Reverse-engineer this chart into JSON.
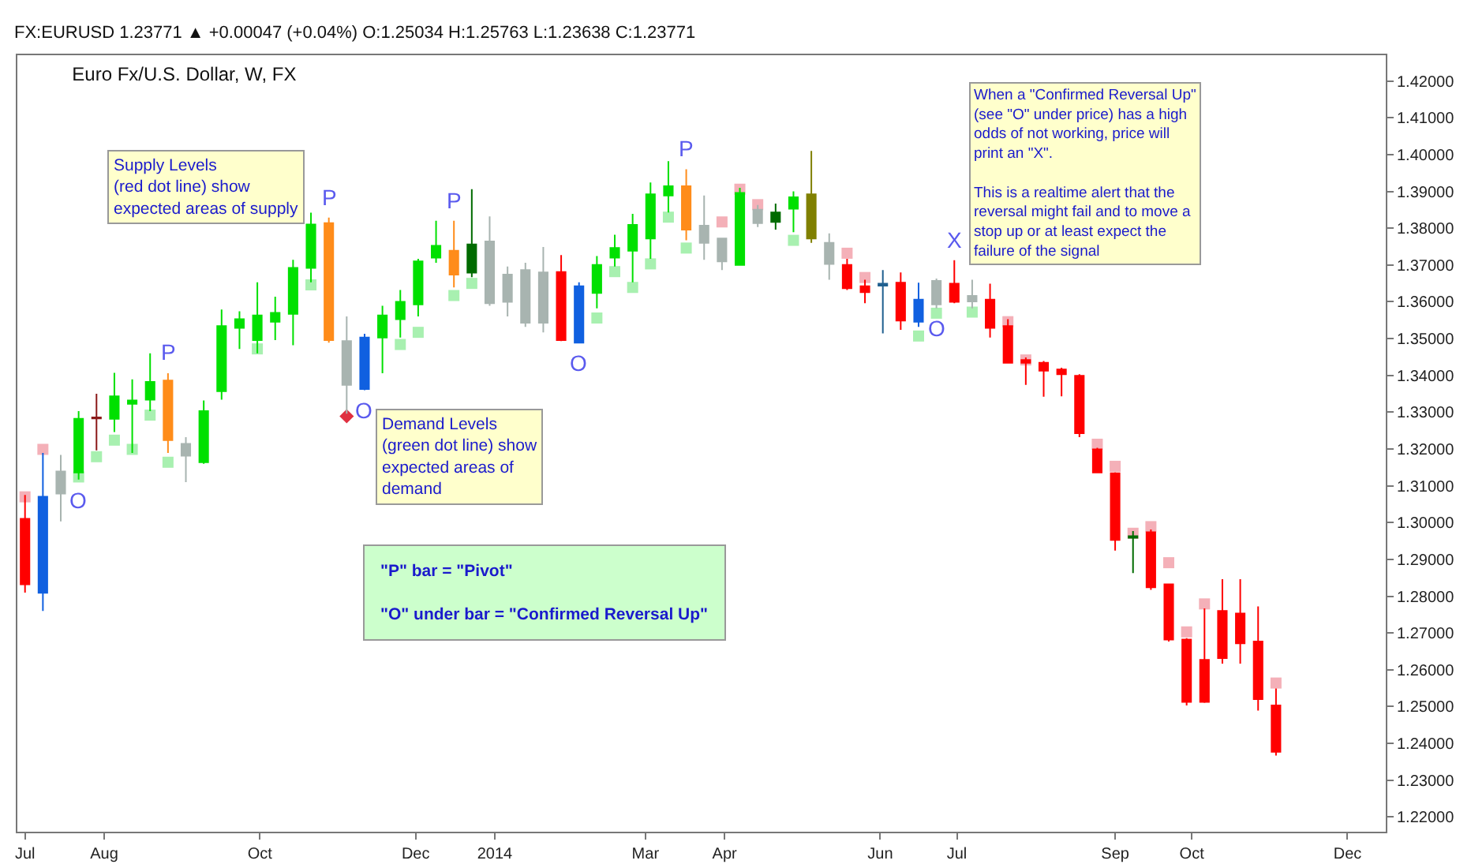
{
  "chart_data": {
    "type": "candlestick",
    "title": "Euro Fx/U.S. Dollar, W, FX",
    "x": [
      "2013-07-01",
      "2013-07-08",
      "2013-07-15",
      "2013-07-22",
      "2013-07-29",
      "2013-08-05",
      "2013-08-12",
      "2013-08-19",
      "2013-08-26",
      "2013-09-02",
      "2013-09-09",
      "2013-09-16",
      "2013-09-23",
      "2013-09-30",
      "2013-10-07",
      "2013-10-14",
      "2013-10-21",
      "2013-10-28",
      "2013-11-04",
      "2013-11-11",
      "2013-11-18",
      "2013-11-25",
      "2013-12-02",
      "2013-12-09",
      "2013-12-16",
      "2013-12-23",
      "2013-12-30",
      "2014-01-06",
      "2014-01-13",
      "2014-01-20",
      "2014-01-27",
      "2014-02-03",
      "2014-02-10",
      "2014-02-17",
      "2014-02-24",
      "2014-03-03",
      "2014-03-10",
      "2014-03-17",
      "2014-03-24",
      "2014-03-31",
      "2014-04-07",
      "2014-04-14",
      "2014-04-21",
      "2014-04-28",
      "2014-05-05",
      "2014-05-12",
      "2014-05-19",
      "2014-05-26",
      "2014-06-02",
      "2014-06-09",
      "2014-06-16",
      "2014-06-23",
      "2014-06-30",
      "2014-07-07",
      "2014-07-14",
      "2014-07-21",
      "2014-07-28",
      "2014-08-04",
      "2014-08-11",
      "2014-08-18",
      "2014-08-25",
      "2014-09-01",
      "2014-09-08",
      "2014-09-15",
      "2014-09-22",
      "2014-09-29",
      "2014-10-06",
      "2014-10-13",
      "2014-10-20",
      "2014-10-27",
      "2014-11-03"
    ],
    "ohlc": [
      [
        1.301,
        1.3075,
        1.281,
        1.2832
      ],
      [
        1.2809,
        1.3189,
        1.276,
        1.307
      ],
      [
        1.3079,
        1.3184,
        1.3003,
        1.3139
      ],
      [
        1.3136,
        1.3303,
        1.3117,
        1.3282
      ],
      [
        1.3286,
        1.335,
        1.3196,
        1.3283
      ],
      [
        1.3282,
        1.3407,
        1.3246,
        1.3343
      ],
      [
        1.3323,
        1.3389,
        1.3189,
        1.3332
      ],
      [
        1.3334,
        1.346,
        1.3303,
        1.3382
      ],
      [
        1.3386,
        1.3406,
        1.3189,
        1.3224
      ],
      [
        1.3182,
        1.3232,
        1.311,
        1.3214
      ],
      [
        1.3164,
        1.3332,
        1.316,
        1.3303
      ],
      [
        1.3357,
        1.3579,
        1.3334,
        1.3534
      ],
      [
        1.3529,
        1.3574,
        1.3472,
        1.3553
      ],
      [
        1.3496,
        1.3653,
        1.346,
        1.3563
      ],
      [
        1.3546,
        1.3614,
        1.3496,
        1.357
      ],
      [
        1.3567,
        1.3714,
        1.3482,
        1.3692
      ],
      [
        1.3692,
        1.3842,
        1.3653,
        1.381
      ],
      [
        1.3814,
        1.3829,
        1.3489,
        1.3496
      ],
      [
        1.3493,
        1.356,
        1.3296,
        1.3374
      ],
      [
        1.3363,
        1.3513,
        1.336,
        1.3503
      ],
      [
        1.3503,
        1.3589,
        1.3406,
        1.3563
      ],
      [
        1.3553,
        1.3632,
        1.3503,
        1.36
      ],
      [
        1.3593,
        1.3717,
        1.356,
        1.371
      ],
      [
        1.372,
        1.382,
        1.3706,
        1.3752
      ],
      [
        1.3739,
        1.382,
        1.3639,
        1.3674
      ],
      [
        1.3679,
        1.3906,
        1.3667,
        1.3756
      ],
      [
        1.3764,
        1.3832,
        1.3589,
        1.3596
      ],
      [
        1.36,
        1.3696,
        1.356,
        1.3674
      ],
      [
        1.3686,
        1.3706,
        1.3532,
        1.3543
      ],
      [
        1.3543,
        1.3749,
        1.3517,
        1.368
      ],
      [
        1.3681,
        1.3727,
        1.3493,
        1.3496
      ],
      [
        1.3489,
        1.3653,
        1.3489,
        1.3642
      ],
      [
        1.3624,
        1.3724,
        1.3582,
        1.37
      ],
      [
        1.372,
        1.3782,
        1.3696,
        1.3746
      ],
      [
        1.3739,
        1.3839,
        1.3653,
        1.3809
      ],
      [
        1.3772,
        1.3924,
        1.3717,
        1.3892
      ],
      [
        1.3889,
        1.3982,
        1.3843,
        1.3914
      ],
      [
        1.3914,
        1.396,
        1.3767,
        1.3796
      ],
      [
        1.3807,
        1.3889,
        1.3714,
        1.376
      ],
      [
        1.3772,
        1.3774,
        1.3686,
        1.371
      ],
      [
        1.37,
        1.391,
        1.37,
        1.3896
      ],
      [
        1.385,
        1.3863,
        1.3803,
        1.3814
      ],
      [
        1.3817,
        1.3867,
        1.3796,
        1.3843
      ],
      [
        1.3853,
        1.39,
        1.3789,
        1.3884
      ],
      [
        1.3892,
        1.401,
        1.376,
        1.3772
      ],
      [
        1.376,
        1.3786,
        1.366,
        1.3703
      ],
      [
        1.37,
        1.3717,
        1.3632,
        1.3637
      ],
      [
        1.3642,
        1.366,
        1.3596,
        1.3626
      ],
      [
        1.3649,
        1.3686,
        1.3514,
        1.3644
      ],
      [
        1.3652,
        1.368,
        1.3524,
        1.3549
      ],
      [
        1.3546,
        1.3652,
        1.3532,
        1.3606
      ],
      [
        1.3593,
        1.3663,
        1.3582,
        1.3657
      ],
      [
        1.3649,
        1.3713,
        1.3596,
        1.36
      ],
      [
        1.3601,
        1.366,
        1.3582,
        1.3616
      ],
      [
        1.3606,
        1.3649,
        1.3503,
        1.3529
      ],
      [
        1.3534,
        1.3553,
        1.3432,
        1.3434
      ],
      [
        1.3442,
        1.3449,
        1.3374,
        1.3434
      ],
      [
        1.3434,
        1.3439,
        1.3342,
        1.3413
      ],
      [
        1.3416,
        1.3421,
        1.3343,
        1.3403
      ],
      [
        1.3399,
        1.3403,
        1.3232,
        1.3243
      ],
      [
        1.3199,
        1.3203,
        1.3134,
        1.3136
      ],
      [
        1.3134,
        1.3137,
        1.2924,
        1.2953
      ],
      [
        1.2959,
        1.2977,
        1.2863,
        1.2963
      ],
      [
        1.2974,
        1.2981,
        1.2817,
        1.2824
      ],
      [
        1.2832,
        1.2834,
        1.2677,
        1.2682
      ],
      [
        1.2682,
        1.2686,
        1.2503,
        1.2513
      ],
      [
        1.2627,
        1.2767,
        1.251,
        1.2513
      ],
      [
        1.276,
        1.2846,
        1.2617,
        1.2632
      ],
      [
        1.2753,
        1.2846,
        1.2617,
        1.2672
      ],
      [
        1.2677,
        1.2772,
        1.2489,
        1.252
      ],
      [
        1.2503,
        1.2549,
        1.2367,
        1.2377
      ]
    ],
    "colors": [
      "#ff0000",
      "#1060e0",
      "#a8b4b0",
      "#00e000",
      "#8b1a1a",
      "#00e000",
      "#00e000",
      "#00e000",
      "#ff8c1a",
      "#a8b4b0",
      "#00e000",
      "#00e000",
      "#00e000",
      "#00e000",
      "#00e000",
      "#00e000",
      "#00e000",
      "#ff8c1a",
      "#a8b4b0",
      "#1060e0",
      "#00e000",
      "#00e000",
      "#00e000",
      "#00e000",
      "#ff8c1a",
      "#006b00",
      "#a8b4b0",
      "#a8b4b0",
      "#a8b4b0",
      "#a8b4b0",
      "#ff0000",
      "#1060e0",
      "#00e000",
      "#00e000",
      "#00e000",
      "#00e000",
      "#00e000",
      "#ff8c1a",
      "#a8b4b0",
      "#a8b4b0",
      "#00e000",
      "#a8b4b0",
      "#006b00",
      "#00e000",
      "#808000",
      "#a8b4b0",
      "#ff0000",
      "#ff0000",
      "#1f5f8f",
      "#ff0000",
      "#1060e0",
      "#a8b4b0",
      "#ff0000",
      "#a8b4b0",
      "#ff0000",
      "#ff0000",
      "#ff0000",
      "#ff0000",
      "#ff0000",
      "#ff0000",
      "#ff0000",
      "#ff0000",
      "#006b00",
      "#ff0000",
      "#ff0000",
      "#ff0000",
      "#ff0000",
      "#ff0000",
      "#ff0000",
      "#ff0000",
      "#ff0000"
    ],
    "series": [
      {
        "type": "scatter",
        "marker": "square",
        "color": "#f4b0b8",
        "x": [
          "2013-07-01",
          "2013-07-08",
          "2014-03-31",
          "2014-04-07",
          "2014-04-14",
          "2014-05-19",
          "2014-05-26",
          "2014-07-21",
          "2014-07-28",
          "2014-08-11",
          "2014-08-25",
          "2014-09-01",
          "2014-09-08",
          "2014-09-15",
          "2014-09-22",
          "2014-09-29",
          "2014-10-06",
          "2014-11-03"
        ],
        "values": [
          1.307,
          1.3199,
          1.3817,
          1.3906,
          1.3864,
          1.3732,
          1.3666,
          1.3546,
          1.3442,
          null,
          1.3213,
          1.3153,
          1.2971,
          1.2989,
          1.2891,
          1.2703,
          1.2779,
          1.2564
        ]
      },
      {
        "type": "scatter",
        "marker": "square",
        "color": "#a8f0b0",
        "x": [
          "2013-07-22",
          "2013-07-29",
          "2013-08-05",
          "2013-08-12",
          "2013-08-19",
          "2013-08-26",
          "2013-09-30",
          "2013-10-21",
          "2013-11-25",
          "2013-12-02",
          "2013-12-16",
          "2013-12-23",
          "2014-02-10",
          "2014-02-17",
          "2014-02-24",
          "2014-03-03",
          "2014-03-10",
          "2014-03-17",
          "2014-04-28",
          "2014-06-16",
          "2014-06-23",
          "2014-07-07"
        ],
        "values": [
          1.3124,
          1.3179,
          1.3224,
          1.3199,
          1.3292,
          1.3164,
          1.3472,
          1.3646,
          1.3484,
          1.3517,
          1.3617,
          1.365,
          1.3556,
          1.3682,
          1.3639,
          1.3703,
          1.383,
          1.3746,
          1.3767,
          1.3507,
          1.3569,
          1.3572
        ]
      },
      {
        "type": "scatter",
        "marker": "diamond",
        "color": "#e03040",
        "x": [
          "2013-11-04"
        ],
        "values": [
          1.3289
        ]
      }
    ],
    "xlim": [
      "2013-06-28",
      "2014-12-16"
    ],
    "xticks": [
      {
        "value": "2013-07-01",
        "label": "Jul"
      },
      {
        "value": "2013-08-01",
        "label": "Aug"
      },
      {
        "value": "2013-10-01",
        "label": "Oct"
      },
      {
        "value": "2013-12-01",
        "label": "Dec"
      },
      {
        "value": "2014-01-01",
        "label": "2014"
      },
      {
        "value": "2014-03-01",
        "label": "Mar"
      },
      {
        "value": "2014-04-01",
        "label": "Apr"
      },
      {
        "value": "2014-06-01",
        "label": "Jun"
      },
      {
        "value": "2014-07-01",
        "label": "Jul"
      },
      {
        "value": "2014-09-01",
        "label": "Sep"
      },
      {
        "value": "2014-10-01",
        "label": "Oct"
      },
      {
        "value": "2014-12-01",
        "label": "Dec"
      }
    ],
    "ylim": [
      1.216,
      1.427
    ],
    "yticks": [
      {
        "value": 1.22,
        "label": "1.22000"
      },
      {
        "value": 1.23,
        "label": "1.23000"
      },
      {
        "value": 1.24,
        "label": "1.24000"
      },
      {
        "value": 1.25,
        "label": "1.25000"
      },
      {
        "value": 1.26,
        "label": "1.26000"
      },
      {
        "value": 1.27,
        "label": "1.27000"
      },
      {
        "value": 1.28,
        "label": "1.28000"
      },
      {
        "value": 1.29,
        "label": "1.29000"
      },
      {
        "value": 1.3,
        "label": "1.30000"
      },
      {
        "value": 1.31,
        "label": "1.31000"
      },
      {
        "value": 1.32,
        "label": "1.32000"
      },
      {
        "value": 1.33,
        "label": "1.33000"
      },
      {
        "value": 1.34,
        "label": "1.34000"
      },
      {
        "value": 1.35,
        "label": "1.35000"
      },
      {
        "value": 1.36,
        "label": "1.36000"
      },
      {
        "value": 1.37,
        "label": "1.37000"
      },
      {
        "value": 1.38,
        "label": "1.38000"
      },
      {
        "value": 1.39,
        "label": "1.39000"
      },
      {
        "value": 1.4,
        "label": "1.40000"
      },
      {
        "value": 1.41,
        "label": "1.41000"
      },
      {
        "value": 1.42,
        "label": "1.42000"
      }
    ],
    "grid": false,
    "annotations": [
      "FX:EURUSD 1.23771 ▲ +0.00047 (+0.04%) O:1.25034 H:1.25763 L:1.23638 C:1.23771",
      "Supply Levels\n(red dot line) show\nexpected areas of supply",
      "Demand Levels\n(green dot line) show\nexpected areas of\ndemand",
      "\"P\" bar = \"Pivot\"\n\n\"O\" under bar = \"Confirmed Reversal Up\"",
      "When a \"Confirmed Reversal Up\"\n(see \"O\" under price) has a high\nodds of not working, price will\nprint an \"X\".\n\nThis is a realtime alert that the\nreversal might fail and to move a\nstop up or at least expect the\nfailure of the signal",
      {
        "text": "P",
        "x": "2013-08-26",
        "y": 1.3406
      },
      {
        "text": "P",
        "x": "2013-10-28",
        "y": 1.3829
      },
      {
        "text": "P",
        "x": "2013-12-16",
        "y": 1.382
      },
      {
        "text": "P",
        "x": "2014-03-17",
        "y": 1.396
      },
      {
        "text": "O",
        "x": "2013-07-22",
        "y": 1.3117
      },
      {
        "text": "O",
        "x": "2013-11-11",
        "y": 1.336
      },
      {
        "text": "O",
        "x": "2014-02-03",
        "y": 1.3489
      },
      {
        "text": "O",
        "x": "2014-06-23",
        "y": 1.3582
      },
      {
        "text": "X",
        "x": "2014-06-30",
        "y": 1.3713
      }
    ]
  }
}
